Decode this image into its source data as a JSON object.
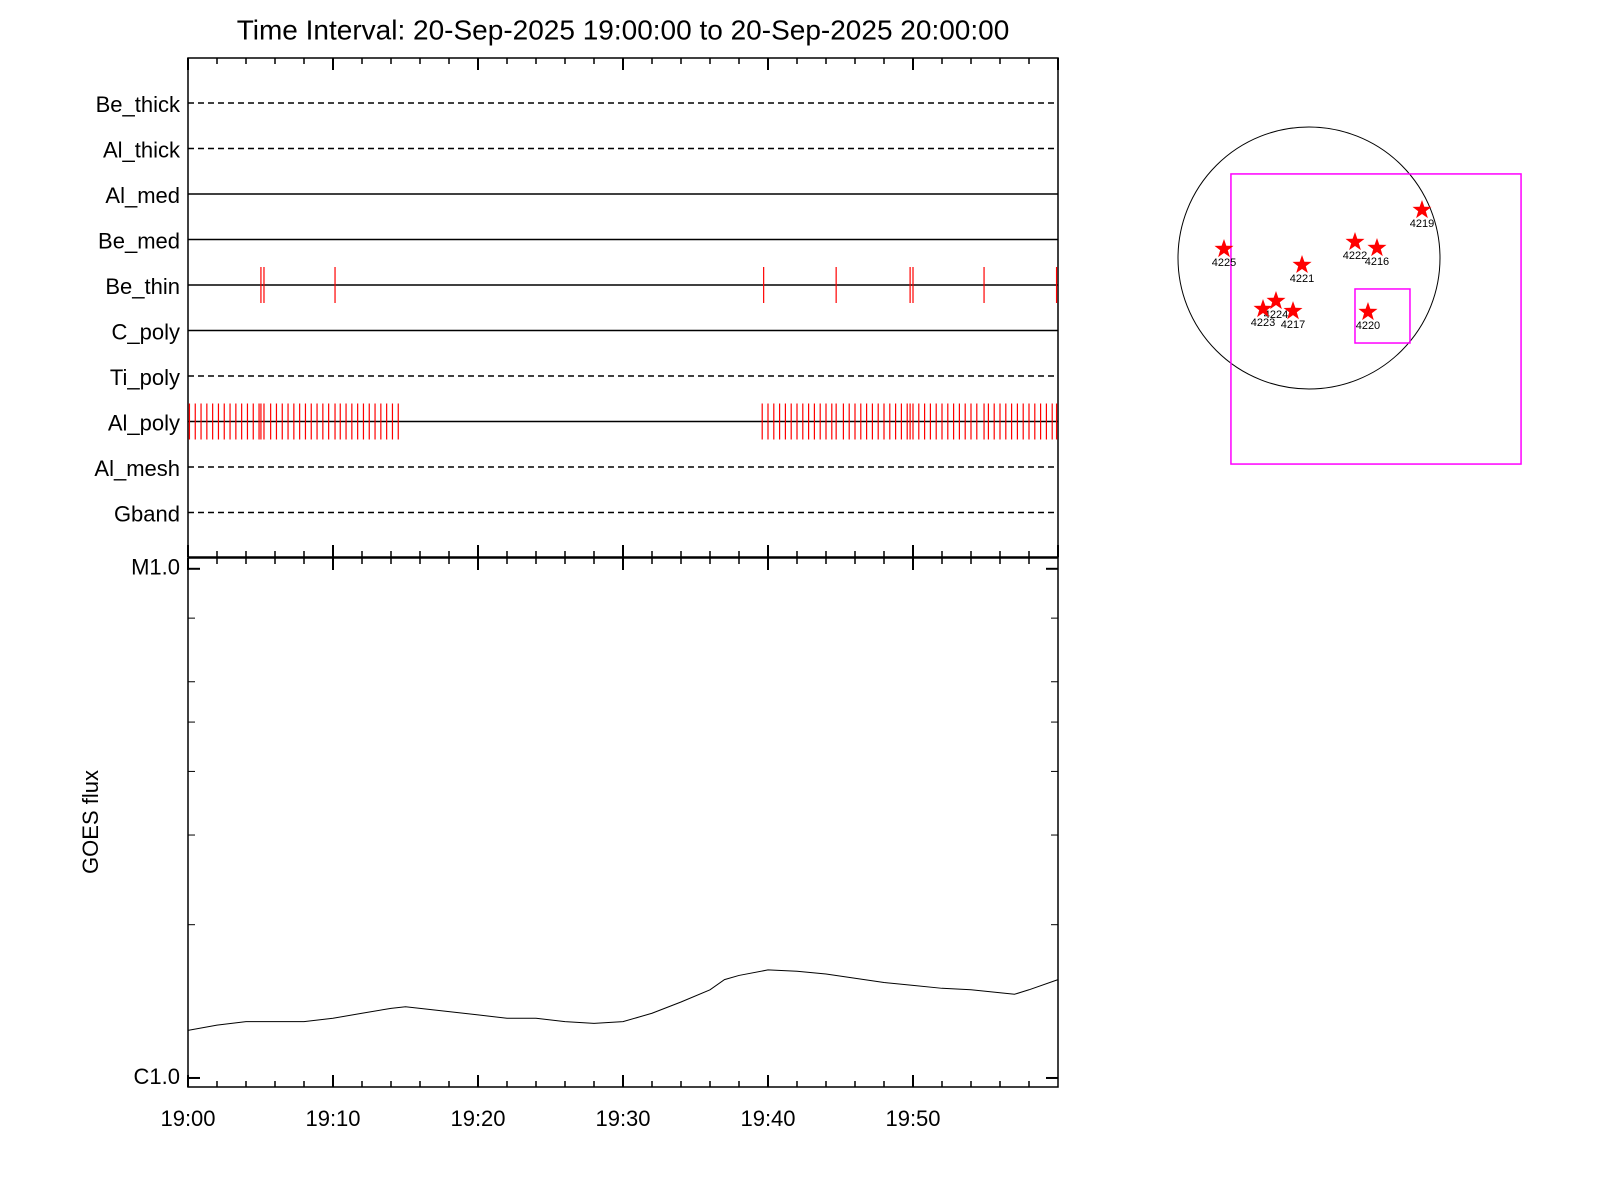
{
  "chart_data": [
    {
      "type": "events",
      "title": "Time Interval: 20-Sep-2025 19:00:00 to 20-Sep-2025 20:00:00",
      "xlim": [
        0,
        60
      ],
      "xticks": [
        0,
        10,
        20,
        30,
        40,
        50,
        60
      ],
      "xminor": [
        2,
        4,
        6,
        8,
        12,
        14,
        16,
        18,
        22,
        24,
        26,
        28,
        32,
        34,
        36,
        38,
        42,
        44,
        46,
        48,
        52,
        54,
        56,
        58
      ],
      "color": "#ff0000",
      "rows": [
        {
          "name": "Be_thick",
          "dashed": true,
          "events": []
        },
        {
          "name": "Al_thick",
          "dashed": true,
          "events": []
        },
        {
          "name": "Al_med",
          "dashed": false,
          "events": []
        },
        {
          "name": "Be_med",
          "dashed": false,
          "events": []
        },
        {
          "name": "Be_thin",
          "dashed": false,
          "events": [
            5.03,
            5.24,
            10.14,
            39.7,
            44.7,
            49.8,
            50.0,
            54.9,
            59.9
          ]
        },
        {
          "name": "C_poly",
          "dashed": false,
          "events": []
        },
        {
          "name": "Ti_poly",
          "dashed": true,
          "events": []
        },
        {
          "name": "Al_poly",
          "dashed": false,
          "events": [
            0.1,
            0.5,
            0.9,
            1.3,
            1.7,
            2.1,
            2.5,
            2.9,
            3.3,
            3.7,
            4.1,
            4.5,
            4.9,
            5.03,
            5.24,
            5.7,
            6.1,
            6.5,
            6.9,
            7.3,
            7.7,
            8.1,
            8.5,
            8.9,
            9.3,
            9.7,
            10.14,
            10.5,
            10.9,
            11.3,
            11.7,
            12.1,
            12.5,
            12.9,
            13.3,
            13.7,
            14.1,
            14.5,
            39.6,
            40.0,
            40.4,
            40.8,
            41.2,
            41.6,
            42.0,
            42.4,
            42.8,
            43.2,
            43.6,
            44.0,
            44.4,
            44.7,
            45.2,
            45.6,
            46.0,
            46.4,
            46.8,
            47.2,
            47.6,
            48.0,
            48.4,
            48.8,
            49.2,
            49.6,
            49.8,
            50.0,
            50.4,
            50.8,
            51.2,
            51.6,
            52.0,
            52.4,
            52.8,
            53.2,
            53.6,
            54.0,
            54.4,
            54.9,
            55.2,
            55.6,
            56.0,
            56.4,
            56.8,
            57.2,
            57.6,
            58.0,
            58.4,
            58.8,
            59.2,
            59.6,
            59.9
          ]
        },
        {
          "name": "Al_mesh",
          "dashed": true,
          "events": []
        },
        {
          "name": "Gband",
          "dashed": true,
          "events": []
        }
      ]
    },
    {
      "type": "line",
      "ylabel": "GOES flux",
      "log": true,
      "color": "#000000",
      "xlim": [
        0,
        60
      ],
      "xticks": [
        {
          "value": 0,
          "label": "19:00"
        },
        {
          "value": 10,
          "label": "19:10"
        },
        {
          "value": 20,
          "label": "19:20"
        },
        {
          "value": 30,
          "label": "19:30"
        },
        {
          "value": 40,
          "label": "19:40"
        },
        {
          "value": 50,
          "label": "19:50"
        }
      ],
      "xminor": [
        2,
        4,
        6,
        8,
        12,
        14,
        16,
        18,
        22,
        24,
        26,
        28,
        32,
        34,
        36,
        38,
        42,
        44,
        46,
        48,
        52,
        54,
        56,
        58
      ],
      "ylim": [
        9.6e-07,
        1.05e-05
      ],
      "yticks": [
        {
          "value": 1e-06,
          "label": "C1.0"
        },
        {
          "value": 1e-05,
          "label": "M1.0"
        }
      ],
      "yminor": [
        2e-06,
        3e-06,
        4e-06,
        5e-06,
        6e-06,
        8e-06
      ],
      "x": [
        0,
        2,
        4,
        6,
        8,
        10,
        12,
        14,
        15,
        17,
        20,
        22,
        24,
        26,
        28,
        30,
        32,
        34,
        36,
        37,
        38,
        40,
        42,
        44,
        46,
        48,
        50,
        52,
        54,
        56,
        57,
        58,
        60
      ],
      "values": [
        1.24e-06,
        1.27e-06,
        1.29e-06,
        1.29e-06,
        1.29e-06,
        1.31e-06,
        1.34e-06,
        1.37e-06,
        1.38e-06,
        1.36e-06,
        1.33e-06,
        1.31e-06,
        1.31e-06,
        1.29e-06,
        1.28e-06,
        1.29e-06,
        1.34e-06,
        1.41e-06,
        1.49e-06,
        1.56e-06,
        1.59e-06,
        1.63e-06,
        1.62e-06,
        1.6e-06,
        1.57e-06,
        1.54e-06,
        1.52e-06,
        1.5e-06,
        1.49e-06,
        1.47e-06,
        1.46e-06,
        1.49e-06,
        1.56e-06
      ]
    },
    {
      "type": "scatter",
      "disk_radius": 960,
      "color": "#ff0000",
      "box_color": "#ff00ff",
      "boxes": [
        {
          "xlim": [
            -572,
            1554
          ],
          "ylim": [
            -1510,
            616
          ]
        },
        {
          "xlim": [
            337,
            740
          ],
          "ylim": [
            -623,
            -227
          ]
        }
      ],
      "labels": [
        "4219",
        "4222",
        "4216",
        "4225",
        "4221",
        "4224",
        "4223",
        "4217",
        "4220"
      ],
      "x": [
        828,
        337,
        498,
        -623,
        -51,
        -242,
        -337,
        -117,
        432
      ],
      "y": [
        352,
        117,
        73,
        66,
        -51,
        -315,
        -374,
        -389,
        -396
      ]
    }
  ]
}
